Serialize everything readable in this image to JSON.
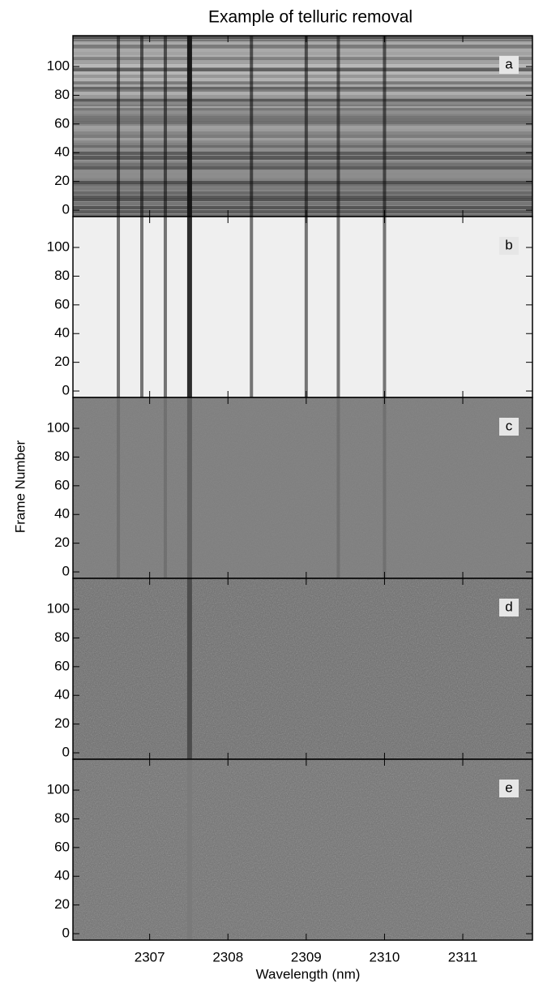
{
  "chart_data": {
    "type": "image-stack",
    "title": "Example of telluric removal",
    "x_label": "Wavelength (nm)",
    "y_label": "Frame Number",
    "xlim": [
      2306.02,
      2311.89
    ],
    "xticks": [
      2307,
      2308,
      2309,
      2310,
      2311
    ],
    "ylim": [
      -4.5,
      121.5
    ],
    "yticks": [
      0,
      20,
      40,
      60,
      80,
      100
    ],
    "panels": [
      {
        "label": "a",
        "background": "#8a8a8a",
        "line_color": "#111111",
        "lines": [
          2306.6,
          2306.9,
          2307.2,
          2307.51,
          2308.3,
          2309.0,
          2309.41,
          2310.0
        ]
      },
      {
        "label": "b",
        "background": "#efefef",
        "line_color": "#222222",
        "lines": [
          2306.6,
          2306.9,
          2307.2,
          2307.51,
          2308.3,
          2309.0,
          2309.41,
          2310.0
        ]
      },
      {
        "label": "c",
        "background": "#7d7d7d",
        "line_color": "#5f5f5f",
        "lines": [
          2306.6,
          2307.2,
          2307.51,
          2309.41,
          2310.0
        ]
      },
      {
        "label": "d",
        "background": "#6a6a6a",
        "line_color": "#4a4a4a",
        "lines": [
          2307.51
        ]
      },
      {
        "label": "e",
        "background": "#6e6e6e",
        "line_color": "#7a7a7a",
        "lines": [
          2307.51
        ]
      }
    ]
  }
}
